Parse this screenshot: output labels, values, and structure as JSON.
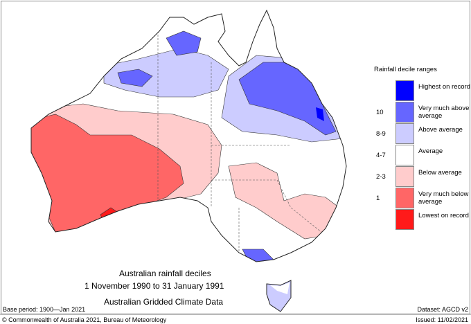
{
  "title": {
    "line1": "Australian rainfall deciles",
    "line2": "1 November 1990 to 31 January 1991",
    "line3": "Australian Gridded Climate Data"
  },
  "base_period": "Base period: 1900—Jan 2021",
  "dataset": "Dataset: AGCD v2",
  "copyright": "© Commonwealth of Australia 2021, Bureau of Meteorology",
  "issued": "Issued: 11/02/2021",
  "legend": {
    "title": "Rainfall decile ranges",
    "items": [
      {
        "num": "",
        "label": "Highest on record",
        "color": "#0000ff"
      },
      {
        "num": "10",
        "label": "Very much above average",
        "color": "#6666ff"
      },
      {
        "num": "8-9",
        "label": "Above average",
        "color": "#ccccff"
      },
      {
        "num": "4-7",
        "label": "Average",
        "color": "#ffffff"
      },
      {
        "num": "2-3",
        "label": "Below average",
        "color": "#ffcccc"
      },
      {
        "num": "1",
        "label": "Very much below average",
        "color": "#ff6666"
      },
      {
        "num": "",
        "label": "Lowest on record",
        "color": "#ff1a1a"
      }
    ]
  }
}
